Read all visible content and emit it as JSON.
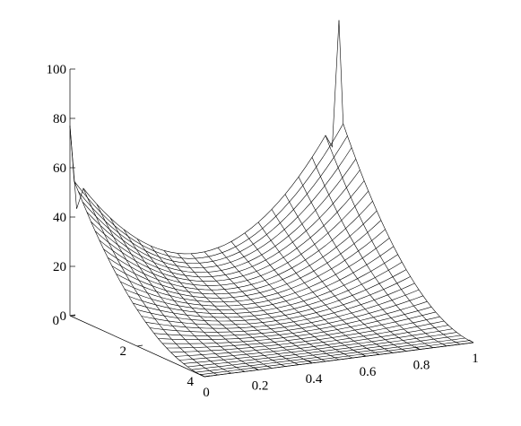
{
  "chart_data": {
    "type": "surface",
    "title": "",
    "xlabel": "",
    "ylabel": "",
    "zlabel": "",
    "x_range": [
      0,
      1
    ],
    "y_range": [
      0,
      4
    ],
    "z_range": [
      0,
      100
    ],
    "grid": false,
    "x_ticks": [
      "0",
      "0.2",
      "0.4",
      "0.6",
      "0.8",
      "1"
    ],
    "y_ticks": [
      "0",
      "2",
      "4"
    ],
    "z_ticks": [
      "0",
      "20",
      "40",
      "60",
      "80",
      "100"
    ],
    "x_tick_values": [
      0,
      0.2,
      0.4,
      0.6,
      0.8,
      1
    ],
    "y_tick_values": [
      0,
      2,
      4
    ],
    "z_tick_values": [
      0,
      20,
      40,
      60,
      80,
      100
    ],
    "surface": {
      "x_samples": 41,
      "y_samples": 33,
      "corner_values": {
        "x0_y0": 77,
        "x1_y0": 106,
        "x0_y4": 0,
        "x1_y4": 0
      },
      "edge_x0_y0_dip": 43,
      "edge_x1_y0_dip": 55,
      "center_min_at_y0": 14,
      "line_color": "#000000"
    }
  }
}
